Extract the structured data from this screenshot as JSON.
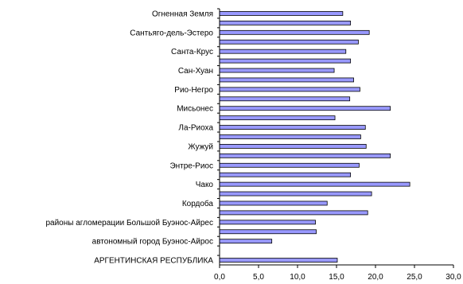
{
  "chart_data": {
    "type": "bar",
    "orientation": "horizontal",
    "categories": [
      "Огненная Земля",
      "",
      "Сантьяго-дель-Эстеро",
      "",
      "Санта-Крус",
      "",
      "Сан-Хуан",
      "",
      "Рио-Негро",
      "",
      "Мисьонес",
      "",
      "Ла-Риоха",
      "",
      "Жужуй",
      "",
      "Энтре-Риос",
      "",
      "Чако",
      "",
      "Кордоба",
      "",
      "районы агломерации Большой Буэнос-Айрес",
      "",
      "автономный город Буэнос-Айрос",
      "",
      "АРГЕНТИНСКАЯ РЕСПУБЛИКА"
    ],
    "values": [
      15.8,
      16.8,
      19.2,
      17.8,
      16.2,
      16.8,
      14.7,
      17.2,
      18.0,
      16.7,
      21.9,
      14.8,
      18.7,
      18.1,
      18.8,
      21.9,
      17.9,
      16.8,
      24.4,
      19.5,
      13.8,
      19.0,
      12.3,
      12.4,
      6.7,
      null,
      15.1
    ],
    "xlim": [
      0,
      30
    ],
    "xticks": [
      "0,0",
      "5,0",
      "10,0",
      "15,0",
      "20,0",
      "25,0",
      "30,0"
    ],
    "grid": false,
    "colors": {
      "bar": "#9999ff",
      "bar_stroke": "#000000",
      "axis": "#000000"
    }
  }
}
